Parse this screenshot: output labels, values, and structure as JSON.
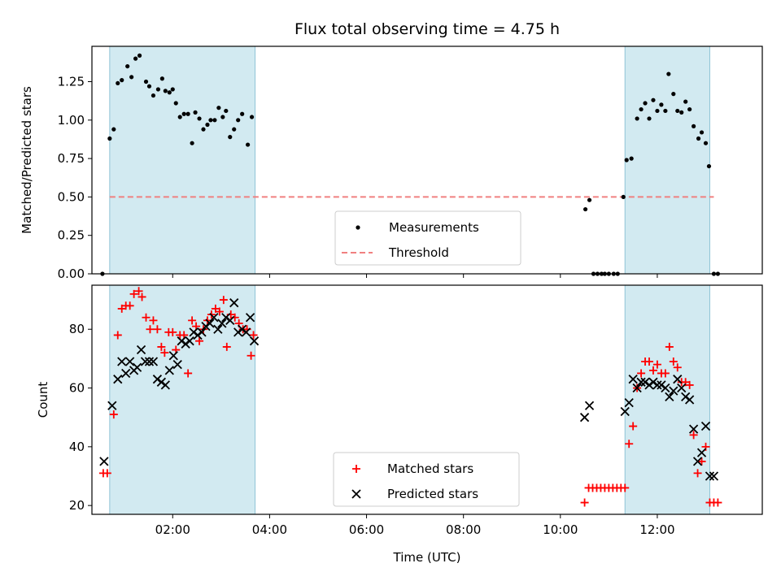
{
  "chart_data": {
    "title": "Flux total observing time = 4.75 h",
    "xlabel": "Time (UTC)",
    "x_unit": "hours UTC",
    "xlim": [
      "00:20",
      "14:10"
    ],
    "x_ticks": [
      "02:00",
      "04:00",
      "06:00",
      "08:00",
      "10:00",
      "12:00"
    ],
    "shaded_intervals": [
      [
        "00:42",
        "03:42"
      ],
      [
        "11:20",
        "13:05"
      ]
    ],
    "shade_color": "#add8e6",
    "panels": [
      {
        "type": "scatter",
        "ylabel": "Matched/Predicted stars",
        "ylim": [
          0,
          1.48
        ],
        "y_ticks": [
          "0.00",
          "0.25",
          "0.50",
          "0.75",
          "1.00",
          "1.25"
        ],
        "legend_position": "lower-center",
        "legend": [
          "Measurements",
          "Threshold"
        ],
        "threshold": {
          "name": "Threshold",
          "value": 0.5,
          "x_range": [
            "00:42",
            "13:10"
          ],
          "color": "#f08080",
          "style": "dashed"
        },
        "series": [
          {
            "name": "Measurements",
            "marker": "dot",
            "color": "#000000",
            "x": [
              "00:33",
              "00:42",
              "00:47",
              "00:52",
              "00:57",
              "01:04",
              "01:09",
              "01:14",
              "01:19",
              "01:27",
              "01:31",
              "01:36",
              "01:42",
              "01:47",
              "01:51",
              "01:56",
              "02:00",
              "02:04",
              "02:09",
              "02:14",
              "02:19",
              "02:24",
              "02:28",
              "02:33",
              "02:38",
              "02:43",
              "02:47",
              "02:52",
              "02:57",
              "03:02",
              "03:06",
              "03:11",
              "03:16",
              "03:21",
              "03:26",
              "03:33",
              "03:38",
              "10:31",
              "10:36",
              "10:41",
              "10:46",
              "10:51",
              "10:55",
              "11:00",
              "11:06",
              "11:11",
              "11:18",
              "11:22",
              "11:28",
              "11:35",
              "11:40",
              "11:45",
              "11:50",
              "11:55",
              "12:00",
              "12:05",
              "12:10",
              "12:14",
              "12:20",
              "12:25",
              "12:30",
              "12:35",
              "12:40",
              "12:45",
              "12:51",
              "12:55",
              "13:00",
              "13:04",
              "13:10",
              "13:15"
            ],
            "y": [
              0.0,
              0.88,
              0.94,
              1.24,
              1.26,
              1.35,
              1.28,
              1.4,
              1.42,
              1.25,
              1.22,
              1.16,
              1.2,
              1.27,
              1.19,
              1.18,
              1.2,
              1.11,
              1.02,
              1.04,
              1.04,
              0.85,
              1.05,
              1.01,
              0.94,
              0.97,
              1.0,
              1.0,
              1.08,
              1.02,
              1.06,
              0.89,
              0.94,
              1.0,
              1.04,
              0.84,
              1.02,
              0.42,
              0.48,
              0.0,
              0.0,
              0.0,
              0.0,
              0.0,
              0.0,
              0.0,
              0.5,
              0.74,
              0.75,
              1.01,
              1.07,
              1.11,
              1.01,
              1.13,
              1.06,
              1.1,
              1.06,
              1.3,
              1.17,
              1.06,
              1.05,
              1.12,
              1.07,
              0.96,
              0.88,
              0.92,
              0.85,
              0.7,
              0.0,
              0.0
            ]
          }
        ]
      },
      {
        "type": "scatter",
        "ylabel": "Count",
        "ylim": [
          17,
          95
        ],
        "y_ticks": [
          "20",
          "40",
          "60",
          "80"
        ],
        "legend_position": "lower-center",
        "legend": [
          "Matched stars",
          "Predicted stars"
        ],
        "series": [
          {
            "name": "Matched stars",
            "marker": "plus",
            "color": "#ff0000",
            "x": [
              "00:34",
              "00:39",
              "00:47",
              "00:52",
              "00:57",
              "01:02",
              "01:07",
              "01:12",
              "01:18",
              "01:22",
              "01:27",
              "01:32",
              "01:36",
              "01:41",
              "01:46",
              "01:50",
              "01:55",
              "02:00",
              "02:04",
              "02:09",
              "02:14",
              "02:19",
              "02:24",
              "02:29",
              "02:33",
              "02:38",
              "02:43",
              "02:48",
              "02:53",
              "02:58",
              "03:03",
              "03:07",
              "03:12",
              "03:17",
              "03:22",
              "03:27",
              "03:32",
              "03:37",
              "03:40",
              "10:30",
              "10:35",
              "10:40",
              "10:45",
              "10:50",
              "10:55",
              "11:00",
              "11:05",
              "11:10",
              "11:15",
              "11:20",
              "11:25",
              "11:30",
              "11:35",
              "11:40",
              "11:45",
              "11:50",
              "11:55",
              "12:00",
              "12:05",
              "12:10",
              "12:15",
              "12:20",
              "12:25",
              "12:30",
              "12:35",
              "12:40",
              "12:45",
              "12:50",
              "12:55",
              "13:00",
              "13:05",
              "13:10",
              "13:15"
            ],
            "y": [
              31,
              31,
              51,
              78,
              87,
              88,
              88,
              92,
              93,
              91,
              84,
              80,
              83,
              80,
              74,
              72,
              79,
              79,
              73,
              78,
              78,
              65,
              83,
              81,
              76,
              80,
              83,
              85,
              87,
              86,
              90,
              74,
              85,
              84,
              82,
              80,
              80,
              71,
              78,
              21,
              26,
              26,
              26,
              26,
              26,
              26,
              26,
              26,
              26,
              26,
              41,
              47,
              60,
              65,
              69,
              69,
              66,
              68,
              65,
              65,
              74,
              69,
              67,
              62,
              62,
              61,
              44,
              31,
              35,
              40,
              21,
              21,
              21
            ]
          },
          {
            "name": "Predicted stars",
            "marker": "x",
            "color": "#000000",
            "x": [
              "00:35",
              "00:45",
              "00:52",
              "00:57",
              "01:02",
              "01:07",
              "01:12",
              "01:16",
              "01:21",
              "01:26",
              "01:31",
              "01:36",
              "01:41",
              "01:46",
              "01:51",
              "01:56",
              "02:01",
              "02:06",
              "02:11",
              "02:16",
              "02:21",
              "02:26",
              "02:31",
              "02:36",
              "02:41",
              "02:46",
              "02:51",
              "02:56",
              "03:01",
              "03:06",
              "03:11",
              "03:16",
              "03:21",
              "03:26",
              "03:31",
              "03:36",
              "03:41",
              "10:30",
              "10:36",
              "11:20",
              "11:25",
              "11:30",
              "11:35",
              "11:40",
              "11:45",
              "11:50",
              "11:55",
              "12:00",
              "12:05",
              "12:10",
              "12:15",
              "12:20",
              "12:25",
              "12:30",
              "12:35",
              "12:40",
              "12:45",
              "12:50",
              "12:55",
              "13:00",
              "13:05",
              "13:10"
            ],
            "y": [
              35,
              54,
              63,
              69,
              65,
              69,
              66,
              67,
              73,
              69,
              69,
              69,
              63,
              62,
              61,
              66,
              71,
              68,
              76,
              75,
              76,
              79,
              78,
              79,
              81,
              82,
              84,
              80,
              82,
              84,
              83,
              89,
              79,
              80,
              79,
              84,
              76,
              50,
              54,
              52,
              55,
              63,
              60,
              62,
              62,
              61,
              62,
              61,
              61,
              60,
              57,
              59,
              63,
              60,
              57,
              56,
              46,
              35,
              38,
              47,
              30,
              30
            ]
          }
        ]
      }
    ]
  }
}
